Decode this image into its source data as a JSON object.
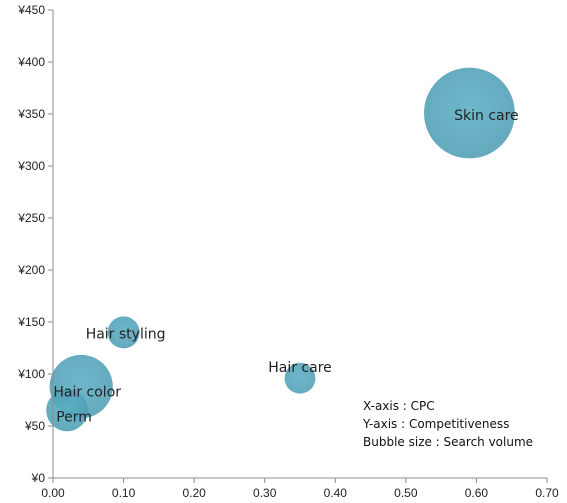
{
  "chart_data": {
    "type": "bubble",
    "xlim": [
      0,
      0.7
    ],
    "ylim": [
      0,
      450
    ],
    "x_ticks": [
      "0.00",
      "0.10",
      "0.20",
      "0.30",
      "0.40",
      "0.50",
      "0.60",
      "0.70"
    ],
    "y_ticks": [
      "¥0",
      "¥50",
      "¥100",
      "¥150",
      "¥200",
      "¥250",
      "¥300",
      "¥350",
      "¥400",
      "¥450"
    ],
    "grid": false,
    "bubble_color": "#5aaec4",
    "series": [
      {
        "label": "Hair color",
        "x": 0.04,
        "y": 88,
        "size": 1.6
      },
      {
        "label": "Perm",
        "x": 0.02,
        "y": 65,
        "size": 0.7
      },
      {
        "label": "Hair styling",
        "x": 0.1,
        "y": 140,
        "size": 0.41
      },
      {
        "label": "Hair care",
        "x": 0.35,
        "y": 96,
        "size": 0.38
      },
      {
        "label": "Skin care",
        "x": 0.59,
        "y": 351,
        "size": 3.3
      }
    ],
    "annotation": [
      "X-axis : CPC",
      "Y-axis : Competitiveness",
      "Bubble size : Search volume"
    ]
  }
}
